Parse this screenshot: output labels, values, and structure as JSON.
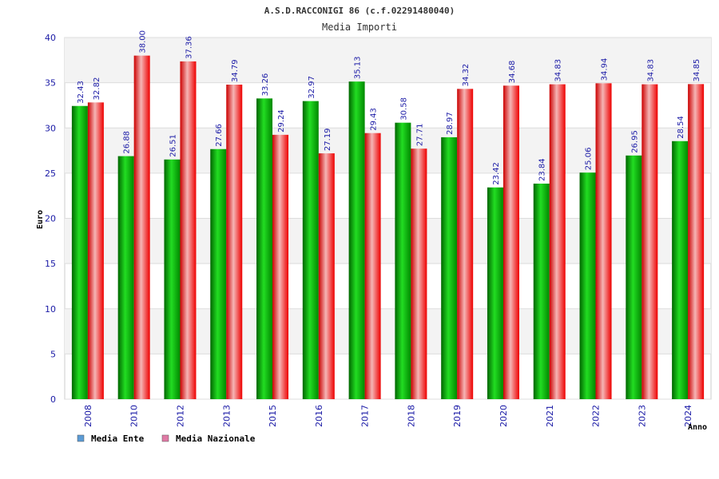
{
  "chart_data": {
    "type": "bar",
    "title": "A.S.D.RACCONIGI 86 (c.f.02291480040)",
    "subtitle": "Media Importi",
    "xlabel": "Anno",
    "ylabel": "Euro",
    "ylim": [
      0,
      40
    ],
    "yticks": [
      "0",
      "5",
      "10",
      "15",
      "20",
      "25",
      "30",
      "35",
      "40"
    ],
    "categories": [
      "2008",
      "2010",
      "2012",
      "2013",
      "2015",
      "2016",
      "2017",
      "2018",
      "2019",
      "2020",
      "2021",
      "2022",
      "2023",
      "2024"
    ],
    "series": [
      {
        "name": "Media Ente",
        "color": "#00aa00",
        "legend_color": "#5b9bd5",
        "values": [
          32.43,
          26.88,
          26.51,
          27.66,
          33.26,
          32.97,
          35.13,
          30.58,
          28.97,
          23.42,
          23.84,
          25.06,
          26.95,
          28.54
        ],
        "labels": [
          "32.43",
          "26.88",
          "26.51",
          "27.66",
          "33.26",
          "32.97",
          "35.13",
          "30.58",
          "28.97",
          "23.42",
          "23.84",
          "25.06",
          "26.95",
          "28.54"
        ]
      },
      {
        "name": "Media Nazionale",
        "color": "#ee0000",
        "legend_color": "#e07aa5",
        "values": [
          32.82,
          38.0,
          37.36,
          34.79,
          29.24,
          27.19,
          29.43,
          27.71,
          34.32,
          34.68,
          34.83,
          34.94,
          34.83,
          34.85
        ],
        "labels": [
          "32.82",
          "38.00",
          "37.36",
          "34.79",
          "29.24",
          "27.19",
          "29.43",
          "27.71",
          "34.32",
          "34.68",
          "34.83",
          "34.94",
          "34.83",
          "34.85"
        ]
      }
    ],
    "grid": true,
    "legend": "bottom-left"
  }
}
